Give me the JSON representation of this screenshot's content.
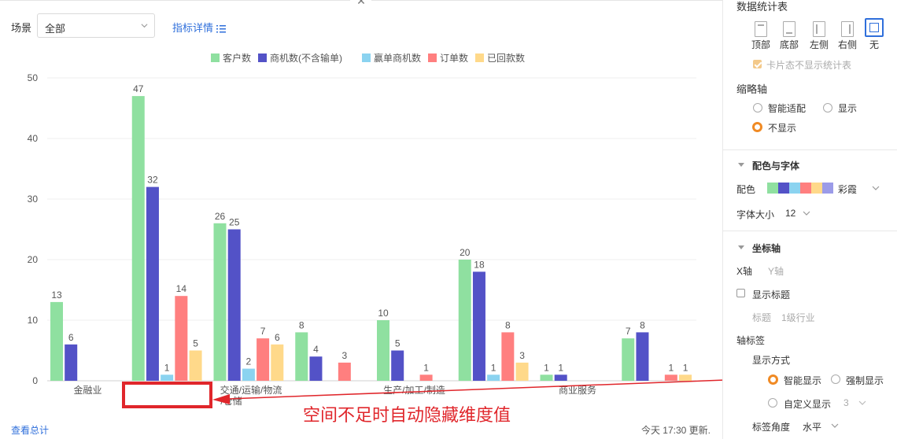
{
  "toolbar": {
    "scene_label": "场景",
    "scene_value": "全部",
    "detail_link": "指标详情"
  },
  "footer": {
    "view_total": "查看总计",
    "update_note": "今天 17:30 更新."
  },
  "annotation": {
    "text": "空间不足时自动隐藏维度值"
  },
  "chart_data": {
    "type": "bar",
    "categories": [
      "金融业",
      "",
      "交通/运输/物流/仓储",
      "",
      "生产/加工/制造",
      "",
      "商业服务",
      ""
    ],
    "category_labels_shown": [
      "金融业",
      "",
      "交通/运输/物流",
      "",
      "生产/加工/制造",
      "",
      "商业服务",
      ""
    ],
    "category_label_second_line": [
      "",
      "",
      "/仓储",
      "",
      "",
      "",
      "",
      ""
    ],
    "series": [
      {
        "name": "客户数",
        "color": "#8fe0a0",
        "values": [
          13,
          47,
          26,
          8,
          10,
          20,
          1,
          7
        ]
      },
      {
        "name": "商机数(不含输单)",
        "color": "#5352c7",
        "values": [
          6,
          32,
          25,
          4,
          5,
          18,
          1,
          8
        ]
      },
      {
        "name": "赢单商机数",
        "color": "#8bd3f0",
        "values": [
          null,
          1,
          2,
          null,
          null,
          1,
          null,
          null
        ]
      },
      {
        "name": "订单数",
        "color": "#ff7f7f",
        "values": [
          null,
          14,
          7,
          3,
          1,
          8,
          null,
          1
        ]
      },
      {
        "name": "已回款数",
        "color": "#ffd98a",
        "values": [
          null,
          5,
          6,
          null,
          null,
          3,
          null,
          1
        ]
      }
    ],
    "yticks": [
      "0",
      "10",
      "20",
      "30",
      "40",
      "50"
    ],
    "ylim": [
      0,
      50
    ],
    "grid": true,
    "legend_position": "top"
  },
  "panel": {
    "stats_title": "数据统计表",
    "positions": [
      "顶部",
      "底部",
      "左侧",
      "右侧",
      "无"
    ],
    "selected_position": "无",
    "card_hide_label": "卡片态不显示统计表",
    "thumb_axis_title": "缩略轴",
    "thumb_options": [
      "智能适配",
      "显示",
      "不显示"
    ],
    "thumb_selected": "不显示",
    "color_font_title": "配色与字体",
    "color_label": "配色",
    "palette_name": "彩霞",
    "palette_colors": [
      "#8fe0a0",
      "#5352c7",
      "#8bd3f0",
      "#ff7f7f",
      "#ffd98a",
      "#9b9be8"
    ],
    "font_size_label": "字体大小",
    "font_size_value": "12",
    "axis_title": "坐标轴",
    "axis_tab_x": "X轴",
    "axis_tab_y": "Y轴",
    "show_title_label": "显示标题",
    "title_label": "标题",
    "title_value": "1级行业",
    "axis_label_title": "轴标签",
    "display_mode_label": "显示方式",
    "display_options": [
      "智能显示",
      "强制显示",
      "自定义显示"
    ],
    "display_selected": "智能显示",
    "custom_value": "3",
    "label_angle_label": "标签角度",
    "label_angle_value": "水平"
  }
}
